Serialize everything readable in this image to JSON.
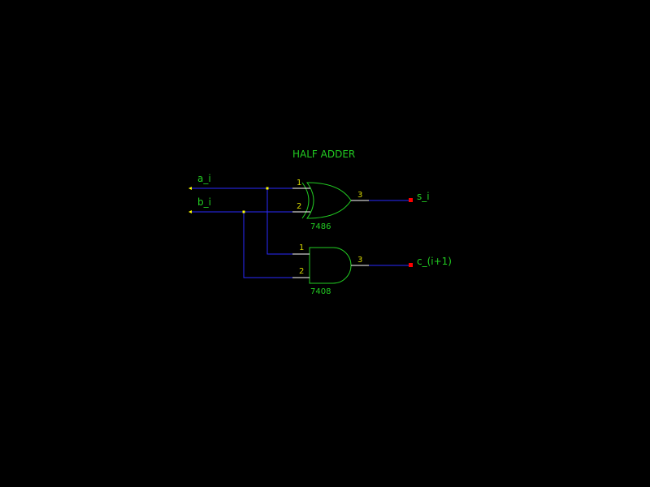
{
  "title": "HALF ADDER",
  "gates": [
    {
      "id": "xor",
      "type": "XOR",
      "part": "7486",
      "pins": {
        "in1": "1",
        "in2": "2",
        "out": "3"
      }
    },
    {
      "id": "and",
      "type": "AND",
      "part": "7408",
      "pins": {
        "in1": "1",
        "in2": "2",
        "out": "3"
      }
    }
  ],
  "inputs": [
    {
      "name": "a_i"
    },
    {
      "name": "b_i"
    }
  ],
  "outputs": [
    {
      "name": "s_i"
    },
    {
      "name": "c_(i+1)"
    }
  ],
  "colors": {
    "background": "#000000",
    "wire": "#2a2aff",
    "gate": "#22cc22",
    "label": "#22cc22",
    "pin_number": "#d8d800",
    "pin_stub": "#ffffff",
    "junction": "#ffff00",
    "input_marker": "#ffff00",
    "output_terminal": "#ff0000"
  }
}
